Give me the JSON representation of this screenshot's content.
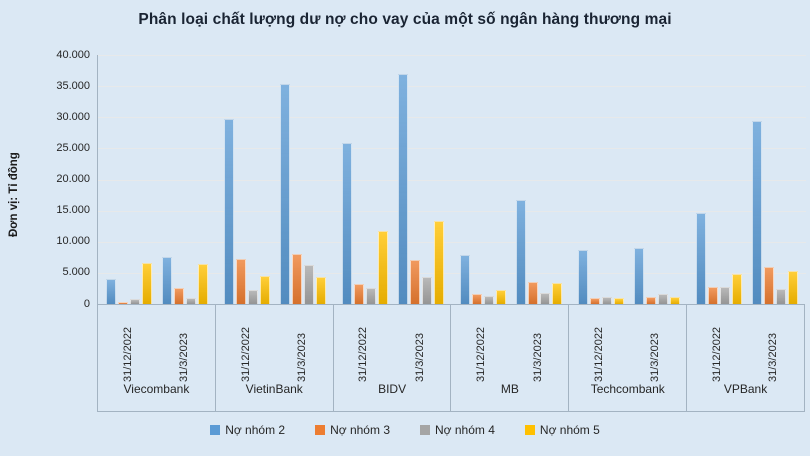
{
  "title": "Phân loại chất lượng dư nợ cho vay của một số ngân hàng thương mại",
  "y_axis_label": "Đơn vị: Tỉ đồng",
  "colors": {
    "background": "#dbe8f4",
    "series_no_nhom_2": "#5B9BD5",
    "series_no_nhom_3": "#ED7D31",
    "series_no_nhom_4": "#A5A5A5",
    "series_no_nhom_5": "#FFC000",
    "gridline": "#e9e9e7",
    "axis_border": "#a3b3c2",
    "text": "#262626"
  },
  "chart_data": {
    "type": "bar",
    "title": "Phân loại chất lượng dư nợ cho vay của một số ngân hàng thương mại",
    "xlabel": "",
    "ylabel": "Đơn vị: Tỉ đồng",
    "ylim": [
      0,
      40000
    ],
    "ytick_interval": 5000,
    "ytick_labels": [
      "40.000",
      "35.000",
      "30.000",
      "25.000",
      "20.000",
      "15.000",
      "10.000",
      "5.000",
      "0"
    ],
    "grid": true,
    "legend_position": "bottom",
    "series_names": [
      "Nợ nhóm 2",
      "Nợ nhóm 3",
      "Nợ nhóm 4",
      "Nợ nhóm 5"
    ],
    "series_colors": [
      "#5B9BD5",
      "#ED7D31",
      "#A5A5A5",
      "#FFC000"
    ],
    "date_labels": [
      "31/12/2022",
      "31/3/2023"
    ],
    "groups": [
      {
        "bank": "Viecombank",
        "dates": [
          {
            "label": "31/12/2022",
            "values": [
              4000,
              400,
              800,
              6600
            ]
          },
          {
            "label": "31/3/2023",
            "values": [
              7500,
              2500,
              1000,
              6400
            ]
          }
        ]
      },
      {
        "bank": "VietinBank",
        "dates": [
          {
            "label": "31/12/2022",
            "values": [
              29800,
              7300,
              2200,
              4500
            ]
          },
          {
            "label": "31/3/2023",
            "values": [
              35400,
              8100,
              6200,
              4300
            ]
          }
        ]
      },
      {
        "bank": "BIDV",
        "dates": [
          {
            "label": "31/12/2022",
            "values": [
              25800,
              3200,
              2600,
              11700
            ]
          },
          {
            "label": "31/3/2023",
            "values": [
              36900,
              7100,
              4300,
              13300
            ]
          }
        ]
      },
      {
        "bank": "MB",
        "dates": [
          {
            "label": "31/12/2022",
            "values": [
              7800,
              1600,
              1300,
              2300
            ]
          },
          {
            "label": "31/3/2023",
            "values": [
              16700,
              3500,
              1700,
              3400
            ]
          }
        ]
      },
      {
        "bank": "Techcombank",
        "dates": [
          {
            "label": "31/12/2022",
            "values": [
              8700,
              1000,
              1100,
              1000
            ]
          },
          {
            "label": "31/3/2023",
            "values": [
              9000,
              1100,
              1650,
              1100
            ]
          }
        ]
      },
      {
        "bank": "VPBank",
        "dates": [
          {
            "label": "31/12/2022",
            "values": [
              14700,
              2700,
              2800,
              4800
            ]
          },
          {
            "label": "31/3/2023",
            "values": [
              29400,
              6000,
              2400,
              5300
            ]
          }
        ]
      }
    ]
  },
  "legend": {
    "items": [
      {
        "label": "Nợ nhóm 2",
        "color": "#5B9BD5"
      },
      {
        "label": "Nợ nhóm 3",
        "color": "#ED7D31"
      },
      {
        "label": "Nợ nhóm 4",
        "color": "#A5A5A5"
      },
      {
        "label": "Nợ nhóm 5",
        "color": "#FFC000"
      }
    ]
  }
}
